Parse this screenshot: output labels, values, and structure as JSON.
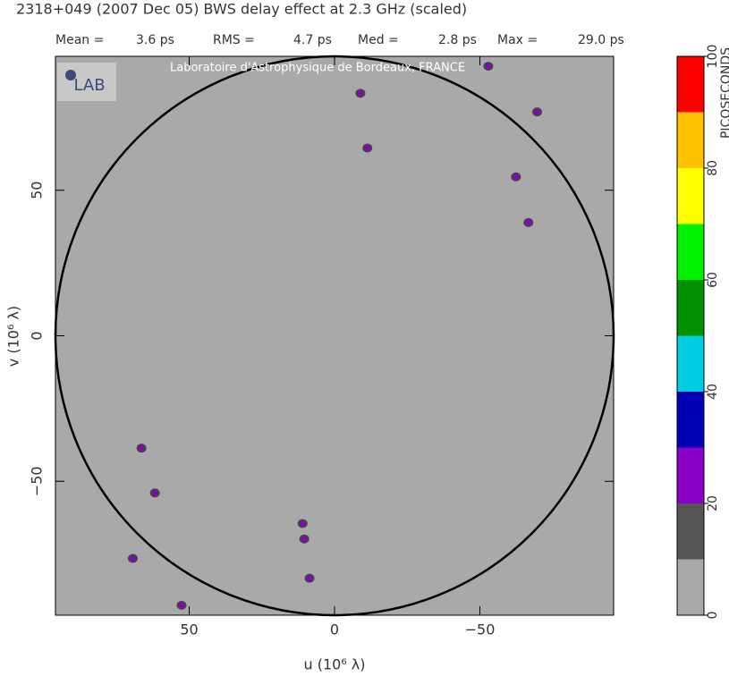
{
  "chart_data": {
    "type": "scatter",
    "title": "2318+049  (2007 Dec 05)   BWS delay effect at  2.3 GHz (scaled)",
    "stats": [
      {
        "label": "Mean =",
        "value": "3.6 ps"
      },
      {
        "label": "RMS =",
        "value": "4.7 ps"
      },
      {
        "label": "Med =",
        "value": "2.8 ps"
      },
      {
        "label": "Max =",
        "value": "29.0 ps"
      }
    ],
    "watermark": "Laboratoire d'Astrophysique de Bordeaux, FRANCE",
    "logo": "LAB",
    "x_label": "u  (10⁶ λ)",
    "y_label": "v  (10⁶ λ)",
    "xlim": [
      96,
      -96
    ],
    "ylim": [
      -96,
      96
    ],
    "xticks": [
      50,
      0,
      {
        "value": -50,
        "label": "−50"
      }
    ],
    "yticks": [
      {
        "value": -50,
        "label": "−50"
      },
      0,
      50
    ],
    "x": [
      -8.9,
      -11.3,
      -52.9,
      -69.7,
      -62.4,
      -66.7,
      66.4,
      61.8,
      69.4,
      52.6,
      11.0,
      10.4,
      8.6
    ],
    "y": [
      83.3,
      64.5,
      92.6,
      76.9,
      54.6,
      38.9,
      -38.6,
      -54.0,
      -76.5,
      -92.6,
      -64.5,
      -69.8,
      -83.3
    ],
    "color": "#8b00c8",
    "background": "#a9a9a9",
    "colorbar": {
      "label": "PICOSECONDS",
      "levels": [
        0,
        10,
        20,
        30,
        40,
        50,
        60,
        70,
        80,
        90,
        100
      ],
      "colors": [
        "#a9a9a9",
        "#555555",
        "#8b00c8",
        "#0000b4",
        "#00cde0",
        "#009000",
        "#00f000",
        "#ffff00",
        "#ffc000",
        "#ff0000"
      ],
      "ticks": [
        0,
        20,
        40,
        60,
        80,
        100
      ]
    }
  }
}
